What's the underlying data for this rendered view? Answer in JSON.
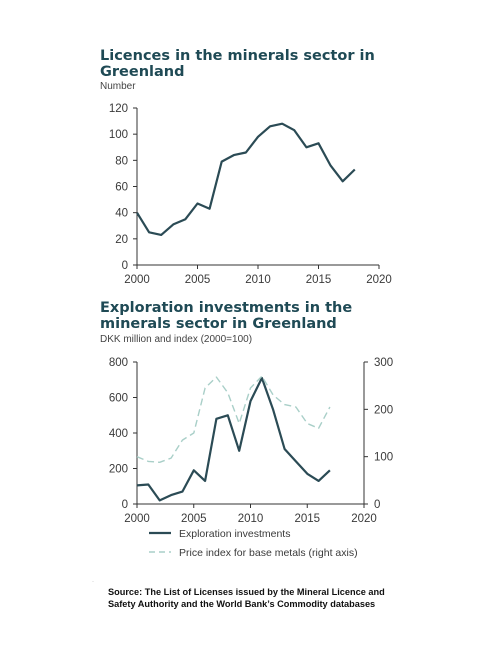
{
  "colors": {
    "title": "#1f4a55",
    "line": "#2b4b55",
    "price_dashed": "#a9cfc8",
    "axis": "#333333"
  },
  "chart_data": [
    {
      "type": "line",
      "title": "Licences in the minerals sector in Greenland",
      "ylabel": "Number",
      "xlim": [
        2000,
        2020
      ],
      "ylim": [
        0,
        120
      ],
      "x_ticks": [
        2000,
        2005,
        2010,
        2015,
        2020
      ],
      "y_ticks": [
        0,
        20,
        40,
        60,
        80,
        100,
        120
      ],
      "grid": false,
      "series": [
        {
          "x": [
            2000,
            2001,
            2002,
            2003,
            2004,
            2005,
            2006,
            2007,
            2008,
            2009,
            2010,
            2011,
            2012,
            2013,
            2014,
            2015,
            2016,
            2017,
            2018
          ],
          "values": [
            40,
            25,
            23,
            31,
            35,
            47,
            43,
            79,
            84,
            86,
            98,
            106,
            108,
            103,
            90,
            93,
            76,
            64,
            73
          ]
        }
      ]
    },
    {
      "type": "line",
      "title": "Exploration investments in the minerals sector in Greenland",
      "ylabel": "DKK million and index (2000=100)",
      "xlim": [
        2000,
        2020
      ],
      "ylim": [
        0,
        800
      ],
      "y2lim": [
        0,
        300
      ],
      "x_ticks": [
        2000,
        2005,
        2010,
        2015,
        2020
      ],
      "y_ticks": [
        0,
        200,
        400,
        600,
        800
      ],
      "y2_ticks": [
        0,
        100,
        200,
        300
      ],
      "grid": false,
      "legend": "bottom",
      "series": [
        {
          "name": "Exploration investments",
          "axis": "left",
          "style": "solid",
          "x": [
            2000,
            2001,
            2002,
            2003,
            2004,
            2005,
            2006,
            2007,
            2008,
            2009,
            2010,
            2011,
            2012,
            2013,
            2014,
            2015,
            2016,
            2017
          ],
          "values": [
            105,
            110,
            20,
            50,
            70,
            190,
            130,
            480,
            500,
            300,
            580,
            710,
            530,
            310,
            240,
            170,
            130,
            190
          ]
        },
        {
          "name": "Price index for base metals (right axis)",
          "axis": "right",
          "style": "dashed",
          "x": [
            2000,
            2001,
            2002,
            2003,
            2004,
            2005,
            2006,
            2007,
            2008,
            2009,
            2010,
            2011,
            2012,
            2013,
            2014,
            2015,
            2016,
            2017
          ],
          "values": [
            100,
            90,
            88,
            97,
            135,
            150,
            245,
            268,
            235,
            170,
            245,
            270,
            230,
            210,
            205,
            170,
            160,
            205
          ]
        }
      ]
    }
  ],
  "source_text": "Source: The List of Licenses issued by the Mineral Licence and Safety Authority and the World Bank’s Commodity databases"
}
